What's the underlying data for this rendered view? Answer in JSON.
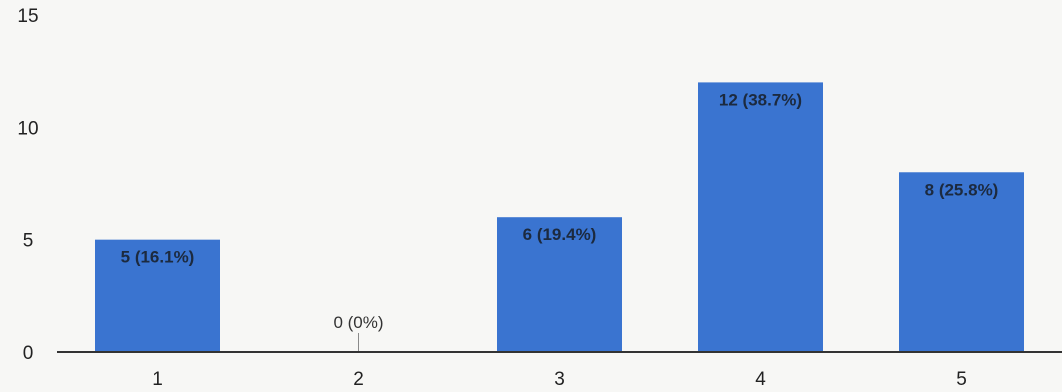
{
  "chart_data": {
    "type": "bar",
    "title": "",
    "xlabel": "",
    "ylabel": "",
    "categories": [
      "1",
      "2",
      "3",
      "4",
      "5"
    ],
    "values": [
      5,
      0,
      6,
      12,
      8
    ],
    "data_labels": [
      "5 (16.1%)",
      "0 (0%)",
      "6 (19.4%)",
      "12 (38.7%)",
      "8 (25.8%)"
    ],
    "ylim": [
      0,
      15
    ],
    "yticks": [
      "0",
      "5",
      "10",
      "15"
    ],
    "grid": false,
    "legend": "none",
    "colors": {
      "bar": "#3a74d0",
      "axis": "#333333",
      "background": "#f7f7f5"
    }
  }
}
